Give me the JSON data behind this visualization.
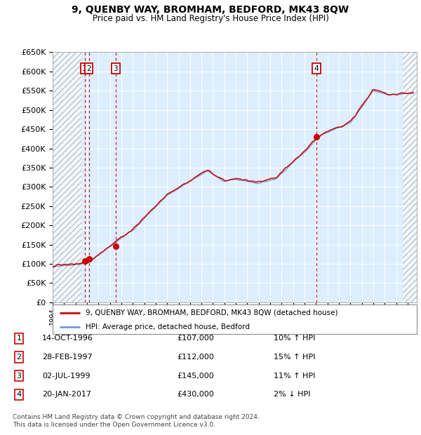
{
  "title": "9, QUENBY WAY, BROMHAM, BEDFORD, MK43 8QW",
  "subtitle": "Price paid vs. HM Land Registry's House Price Index (HPI)",
  "ylim": [
    0,
    650000
  ],
  "yticks": [
    0,
    50000,
    100000,
    150000,
    200000,
    250000,
    300000,
    350000,
    400000,
    450000,
    500000,
    550000,
    600000,
    650000
  ],
  "ytick_labels": [
    "£0",
    "£50K",
    "£100K",
    "£150K",
    "£200K",
    "£250K",
    "£300K",
    "£350K",
    "£400K",
    "£450K",
    "£500K",
    "£550K",
    "£600K",
    "£650K"
  ],
  "xlim_start": 1994.0,
  "xlim_end": 2025.8,
  "hatch_left_end": 1996.5,
  "hatch_right_start": 2024.6,
  "transactions": [
    {
      "id": 1,
      "date": "14-OCT-1996",
      "year": 1996.79,
      "price": 107000,
      "hpi_pct": "10%",
      "hpi_dir": "↑"
    },
    {
      "id": 2,
      "date": "28-FEB-1997",
      "year": 1997.16,
      "price": 112000,
      "hpi_pct": "15%",
      "hpi_dir": "↑"
    },
    {
      "id": 3,
      "date": "02-JUL-1999",
      "year": 1999.5,
      "price": 145000,
      "hpi_pct": "11%",
      "hpi_dir": "↑"
    },
    {
      "id": 4,
      "date": "20-JAN-2017",
      "year": 2017.05,
      "price": 430000,
      "hpi_pct": "2%",
      "hpi_dir": "↓"
    }
  ],
  "legend_line1": "9, QUENBY WAY, BROMHAM, BEDFORD, MK43 8QW (detached house)",
  "legend_line2": "HPI: Average price, detached house, Bedford",
  "footer1": "Contains HM Land Registry data © Crown copyright and database right 2024.",
  "footer2": "This data is licensed under the Open Government Licence v3.0.",
  "line_color_red": "#cc0000",
  "line_color_blue": "#7799cc",
  "plot_bg": "#ddeeff"
}
